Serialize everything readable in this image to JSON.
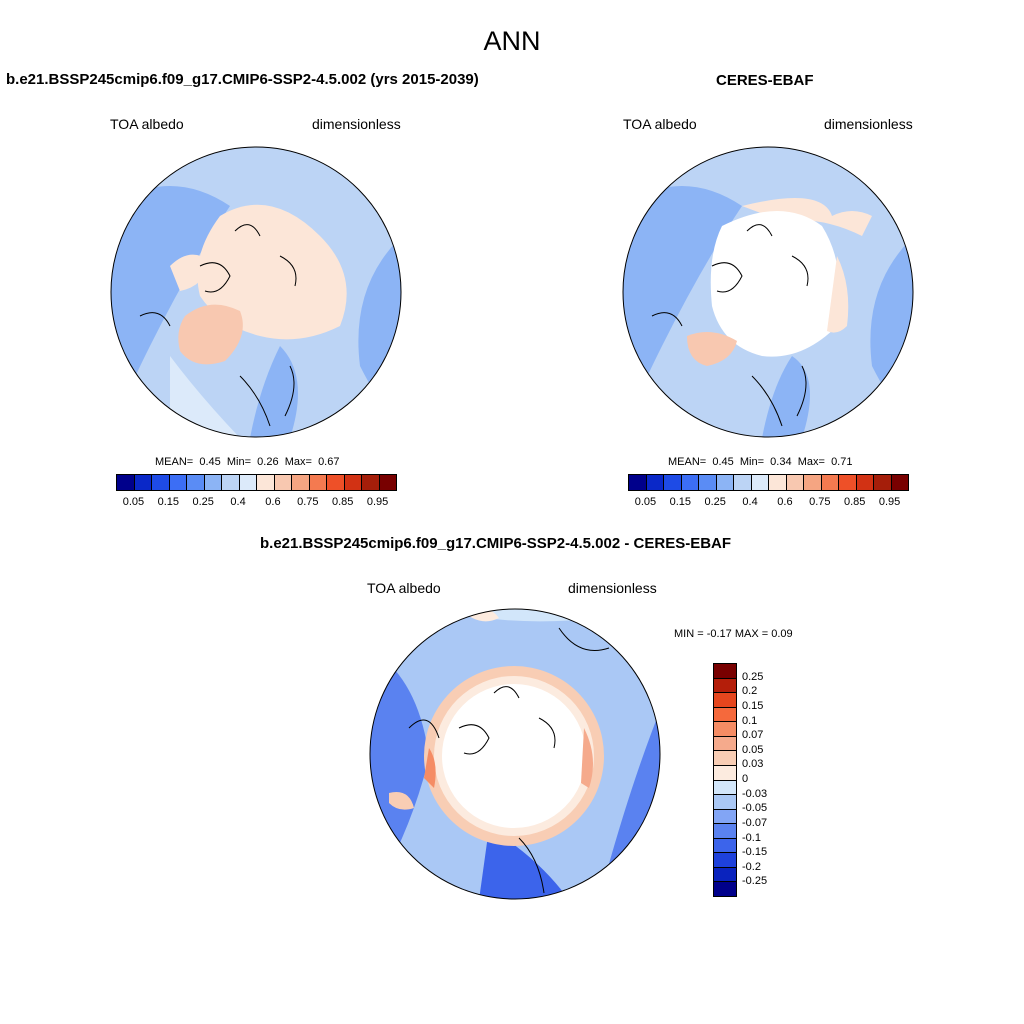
{
  "main_title": "ANN",
  "panels": [
    {
      "title": "b.e21.BSSP245cmip6.f09_g17.CMIP6-SSP2-4.5.002 (yrs 2015-2039)",
      "left_label": "TOA albedo",
      "right_label": "dimensionless",
      "stats": {
        "mean_label": "MEAN=",
        "mean": "0.45",
        "min_label": "Min=",
        "min": "0.26",
        "max_label": "Max=",
        "max": "0.67"
      }
    },
    {
      "title": "CERES-EBAF",
      "left_label": "TOA albedo",
      "right_label": "dimensionless",
      "stats": {
        "mean_label": "MEAN=",
        "mean": "0.45",
        "min_label": "Min=",
        "min": "0.34",
        "max_label": "Max=",
        "max": "0.71"
      }
    },
    {
      "title": "b.e21.BSSP245cmip6.f09_g17.CMIP6-SSP2-4.5.002 - CERES-EBAF",
      "left_label": "TOA albedo",
      "right_label": "dimensionless",
      "stats_text": "MIN =  -0.17 MAX =   0.09"
    }
  ],
  "abs_colorbar": {
    "colors": [
      "#00008b",
      "#0a28c8",
      "#1e4be6",
      "#3c6ef5",
      "#5a8cf5",
      "#8cb4f5",
      "#bcd4f5",
      "#dceafa",
      "#fce6d8",
      "#f8c8b0",
      "#f5a582",
      "#f47a50",
      "#ee5028",
      "#d23214",
      "#a51e0a",
      "#780000"
    ],
    "ticks": [
      "0.05",
      "0.15",
      "0.25",
      "0.4",
      "0.6",
      "0.75",
      "0.85",
      "0.95"
    ]
  },
  "diff_colorbar": {
    "colors": [
      "#780000",
      "#b41e0a",
      "#e6461e",
      "#f5693c",
      "#f58c64",
      "#f5aa8c",
      "#f8cdb4",
      "#fcebdf",
      "#d2e6fa",
      "#aac8f5",
      "#82a5f5",
      "#5a82f0",
      "#3c64eb",
      "#1e41dc",
      "#0a23be",
      "#00008b"
    ],
    "ticks": [
      "0.25",
      "0.2",
      "0.15",
      "0.1",
      "0.07",
      "0.05",
      "0.03",
      "0",
      "-0.03",
      "-0.05",
      "-0.07",
      "-0.1",
      "-0.15",
      "-0.2",
      "-0.25"
    ]
  }
}
